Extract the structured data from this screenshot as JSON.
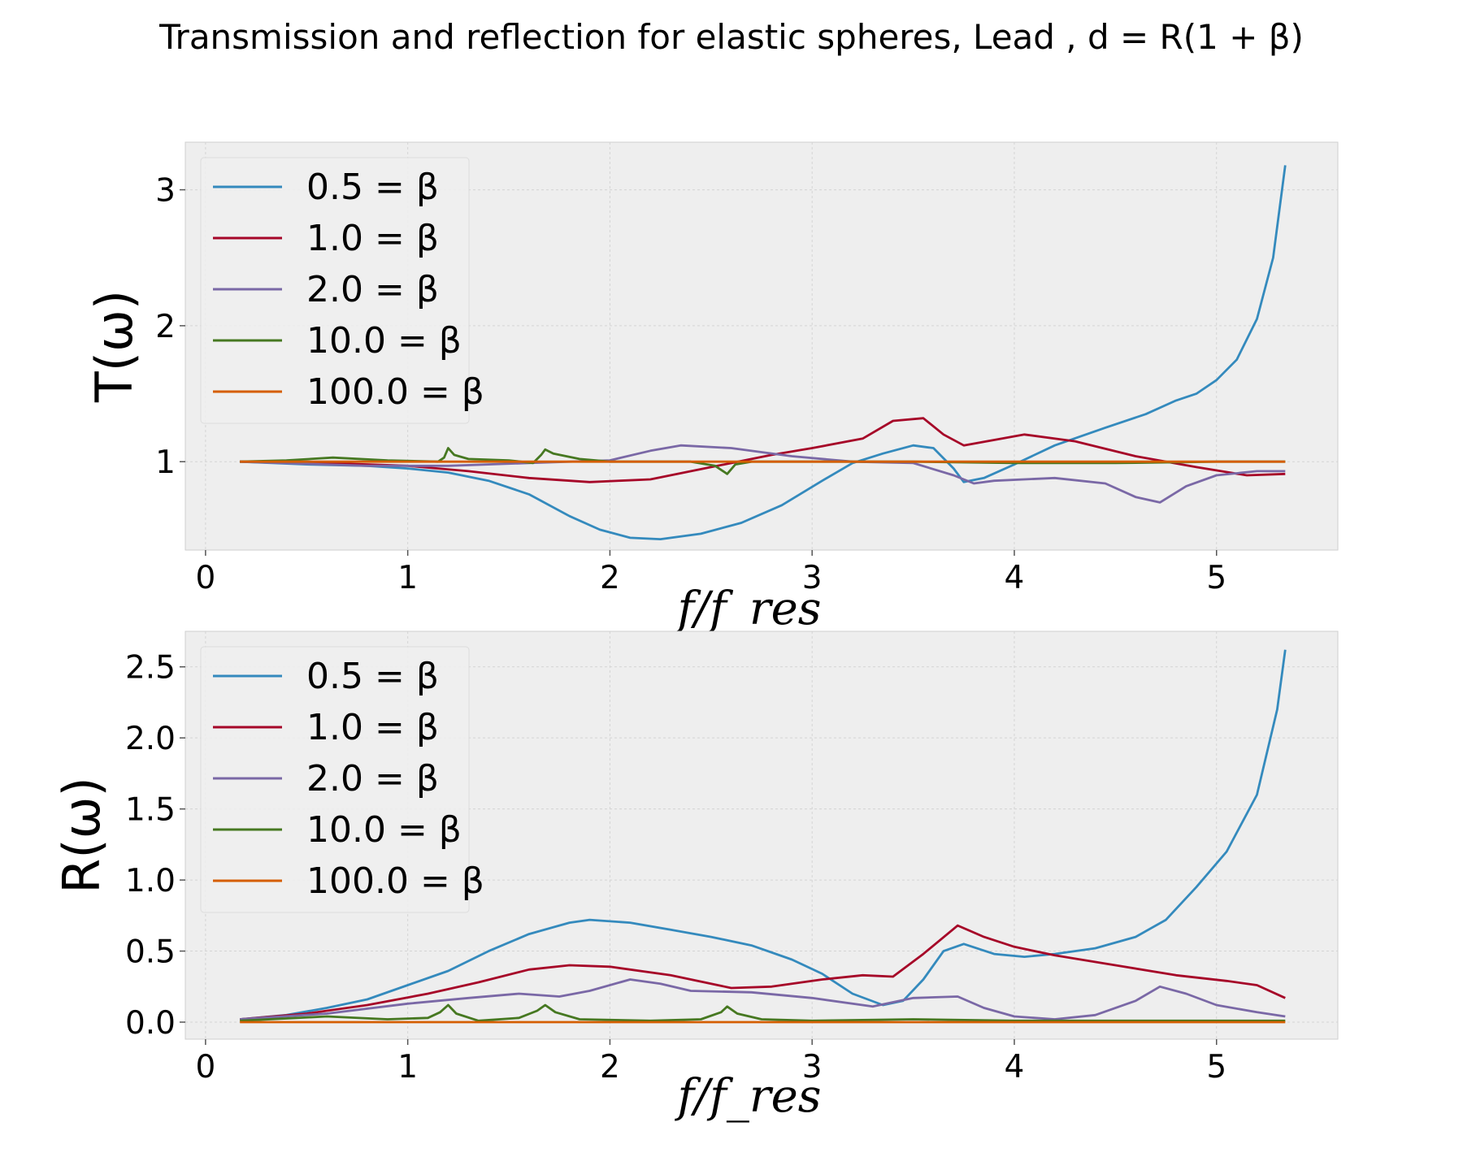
{
  "figure": {
    "title": "Transmission and reflection for elastic spheres, Lead , d = R(1 + β)"
  },
  "chart_data": [
    {
      "type": "line",
      "id": "transmission",
      "ylabel": "T(ω)",
      "xlabel": "f/f_res",
      "xlim": [
        -0.1,
        5.6
      ],
      "ylim": [
        0.35,
        3.35
      ],
      "xticks": [
        0,
        1,
        2,
        3,
        4,
        5
      ],
      "yticks": [
        1,
        2,
        3
      ],
      "ytick_labels": [
        "1",
        "2",
        "3"
      ],
      "grid": true,
      "legend_position": "upper-left",
      "series": [
        {
          "name": "0.5 = β",
          "color": "#348ABD",
          "points": [
            [
              0.17,
              1.0
            ],
            [
              0.5,
              0.98
            ],
            [
              0.8,
              0.97
            ],
            [
              1.0,
              0.95
            ],
            [
              1.2,
              0.92
            ],
            [
              1.4,
              0.86
            ],
            [
              1.6,
              0.76
            ],
            [
              1.8,
              0.6
            ],
            [
              1.95,
              0.5
            ],
            [
              2.1,
              0.44
            ],
            [
              2.25,
              0.43
            ],
            [
              2.45,
              0.47
            ],
            [
              2.65,
              0.55
            ],
            [
              2.85,
              0.68
            ],
            [
              3.05,
              0.86
            ],
            [
              3.2,
              0.99
            ],
            [
              3.35,
              1.06
            ],
            [
              3.5,
              1.12
            ],
            [
              3.6,
              1.1
            ],
            [
              3.7,
              0.95
            ],
            [
              3.75,
              0.85
            ],
            [
              3.85,
              0.88
            ],
            [
              4.0,
              0.98
            ],
            [
              4.2,
              1.12
            ],
            [
              4.45,
              1.25
            ],
            [
              4.65,
              1.35
            ],
            [
              4.8,
              1.45
            ],
            [
              4.9,
              1.5
            ],
            [
              5.0,
              1.6
            ],
            [
              5.1,
              1.75
            ],
            [
              5.2,
              2.05
            ],
            [
              5.28,
              2.5
            ],
            [
              5.34,
              3.18
            ]
          ]
        },
        {
          "name": "1.0 = β",
          "color": "#A60628",
          "points": [
            [
              0.17,
              1.0
            ],
            [
              0.6,
              0.99
            ],
            [
              1.0,
              0.97
            ],
            [
              1.3,
              0.93
            ],
            [
              1.6,
              0.88
            ],
            [
              1.9,
              0.85
            ],
            [
              2.2,
              0.87
            ],
            [
              2.5,
              0.96
            ],
            [
              2.8,
              1.05
            ],
            [
              3.0,
              1.1
            ],
            [
              3.25,
              1.17
            ],
            [
              3.4,
              1.3
            ],
            [
              3.55,
              1.32
            ],
            [
              3.65,
              1.2
            ],
            [
              3.75,
              1.12
            ],
            [
              3.9,
              1.16
            ],
            [
              4.05,
              1.2
            ],
            [
              4.3,
              1.15
            ],
            [
              4.6,
              1.04
            ],
            [
              4.9,
              0.96
            ],
            [
              5.15,
              0.9
            ],
            [
              5.34,
              0.91
            ]
          ]
        },
        {
          "name": "2.0 = β",
          "color": "#7A68A6",
          "points": [
            [
              0.17,
              1.0
            ],
            [
              0.8,
              0.97
            ],
            [
              1.2,
              0.97
            ],
            [
              1.6,
              0.99
            ],
            [
              2.0,
              1.01
            ],
            [
              2.2,
              1.08
            ],
            [
              2.35,
              1.12
            ],
            [
              2.6,
              1.1
            ],
            [
              2.9,
              1.04
            ],
            [
              3.2,
              1.0
            ],
            [
              3.5,
              0.99
            ],
            [
              3.7,
              0.9
            ],
            [
              3.8,
              0.84
            ],
            [
              3.9,
              0.86
            ],
            [
              4.2,
              0.88
            ],
            [
              4.45,
              0.84
            ],
            [
              4.6,
              0.74
            ],
            [
              4.72,
              0.7
            ],
            [
              4.85,
              0.82
            ],
            [
              5.0,
              0.9
            ],
            [
              5.2,
              0.93
            ],
            [
              5.34,
              0.93
            ]
          ]
        },
        {
          "name": "10.0 = β",
          "color": "#467821",
          "points": [
            [
              0.17,
              1.0
            ],
            [
              0.4,
              1.01
            ],
            [
              0.63,
              1.03
            ],
            [
              0.9,
              1.01
            ],
            [
              1.15,
              1.0
            ],
            [
              1.18,
              1.03
            ],
            [
              1.2,
              1.1
            ],
            [
              1.23,
              1.05
            ],
            [
              1.3,
              1.02
            ],
            [
              1.5,
              1.01
            ],
            [
              1.62,
              0.99
            ],
            [
              1.66,
              1.05
            ],
            [
              1.68,
              1.09
            ],
            [
              1.72,
              1.06
            ],
            [
              1.85,
              1.02
            ],
            [
              2.0,
              1.0
            ],
            [
              2.4,
              1.0
            ],
            [
              2.52,
              0.97
            ],
            [
              2.58,
              0.91
            ],
            [
              2.62,
              0.98
            ],
            [
              2.7,
              1.0
            ],
            [
              3.0,
              1.0
            ],
            [
              3.5,
              1.0
            ],
            [
              4.0,
              0.99
            ],
            [
              4.5,
              0.99
            ],
            [
              5.0,
              1.0
            ],
            [
              5.34,
              1.0
            ]
          ]
        },
        {
          "name": "100.0 = β",
          "color": "#D55E00",
          "points": [
            [
              0.17,
              1.0
            ],
            [
              1.0,
              1.0
            ],
            [
              2.0,
              1.0
            ],
            [
              3.0,
              1.0
            ],
            [
              4.0,
              1.0
            ],
            [
              5.0,
              1.0
            ],
            [
              5.34,
              1.0
            ]
          ]
        }
      ]
    },
    {
      "type": "line",
      "id": "reflection",
      "ylabel": "R(ω)",
      "xlabel": "f/f_res",
      "xlim": [
        -0.1,
        5.6
      ],
      "ylim": [
        -0.12,
        2.75
      ],
      "xticks": [
        0,
        1,
        2,
        3,
        4,
        5
      ],
      "yticks": [
        0.0,
        0.5,
        1.0,
        1.5,
        2.0,
        2.5
      ],
      "ytick_labels": [
        "0.0",
        "0.5",
        "1.0",
        "1.5",
        "2.0",
        "2.5"
      ],
      "grid": true,
      "legend_position": "upper-left",
      "series": [
        {
          "name": "0.5 = β",
          "color": "#348ABD",
          "points": [
            [
              0.17,
              0.02
            ],
            [
              0.4,
              0.05
            ],
            [
              0.6,
              0.1
            ],
            [
              0.8,
              0.16
            ],
            [
              1.0,
              0.26
            ],
            [
              1.2,
              0.36
            ],
            [
              1.4,
              0.5
            ],
            [
              1.6,
              0.62
            ],
            [
              1.8,
              0.7
            ],
            [
              1.9,
              0.72
            ],
            [
              2.1,
              0.7
            ],
            [
              2.3,
              0.65
            ],
            [
              2.5,
              0.6
            ],
            [
              2.7,
              0.54
            ],
            [
              2.9,
              0.44
            ],
            [
              3.05,
              0.34
            ],
            [
              3.2,
              0.2
            ],
            [
              3.35,
              0.12
            ],
            [
              3.45,
              0.15
            ],
            [
              3.55,
              0.3
            ],
            [
              3.65,
              0.5
            ],
            [
              3.75,
              0.55
            ],
            [
              3.9,
              0.48
            ],
            [
              4.05,
              0.46
            ],
            [
              4.2,
              0.48
            ],
            [
              4.4,
              0.52
            ],
            [
              4.6,
              0.6
            ],
            [
              4.75,
              0.72
            ],
            [
              4.9,
              0.95
            ],
            [
              5.05,
              1.2
            ],
            [
              5.2,
              1.6
            ],
            [
              5.3,
              2.2
            ],
            [
              5.34,
              2.62
            ]
          ]
        },
        {
          "name": "1.0 = β",
          "color": "#A60628",
          "points": [
            [
              0.17,
              0.02
            ],
            [
              0.5,
              0.06
            ],
            [
              0.8,
              0.12
            ],
            [
              1.1,
              0.2
            ],
            [
              1.35,
              0.28
            ],
            [
              1.6,
              0.37
            ],
            [
              1.8,
              0.4
            ],
            [
              2.0,
              0.39
            ],
            [
              2.3,
              0.33
            ],
            [
              2.6,
              0.24
            ],
            [
              2.8,
              0.25
            ],
            [
              3.05,
              0.3
            ],
            [
              3.25,
              0.33
            ],
            [
              3.4,
              0.32
            ],
            [
              3.55,
              0.48
            ],
            [
              3.72,
              0.68
            ],
            [
              3.85,
              0.6
            ],
            [
              4.0,
              0.53
            ],
            [
              4.2,
              0.47
            ],
            [
              4.5,
              0.4
            ],
            [
              4.8,
              0.33
            ],
            [
              5.05,
              0.29
            ],
            [
              5.2,
              0.26
            ],
            [
              5.34,
              0.17
            ]
          ]
        },
        {
          "name": "2.0 = β",
          "color": "#7A68A6",
          "points": [
            [
              0.17,
              0.02
            ],
            [
              0.6,
              0.06
            ],
            [
              1.0,
              0.13
            ],
            [
              1.3,
              0.17
            ],
            [
              1.55,
              0.2
            ],
            [
              1.75,
              0.18
            ],
            [
              1.9,
              0.22
            ],
            [
              2.1,
              0.3
            ],
            [
              2.25,
              0.27
            ],
            [
              2.4,
              0.22
            ],
            [
              2.7,
              0.21
            ],
            [
              3.0,
              0.17
            ],
            [
              3.3,
              0.11
            ],
            [
              3.5,
              0.17
            ],
            [
              3.72,
              0.18
            ],
            [
              3.85,
              0.1
            ],
            [
              4.0,
              0.04
            ],
            [
              4.2,
              0.02
            ],
            [
              4.4,
              0.05
            ],
            [
              4.6,
              0.15
            ],
            [
              4.72,
              0.25
            ],
            [
              4.85,
              0.2
            ],
            [
              5.0,
              0.12
            ],
            [
              5.2,
              0.07
            ],
            [
              5.34,
              0.04
            ]
          ]
        },
        {
          "name": "10.0 = β",
          "color": "#467821",
          "points": [
            [
              0.17,
              0.01
            ],
            [
              0.6,
              0.04
            ],
            [
              0.9,
              0.02
            ],
            [
              1.1,
              0.03
            ],
            [
              1.16,
              0.07
            ],
            [
              1.2,
              0.12
            ],
            [
              1.24,
              0.06
            ],
            [
              1.35,
              0.01
            ],
            [
              1.55,
              0.03
            ],
            [
              1.64,
              0.08
            ],
            [
              1.68,
              0.12
            ],
            [
              1.73,
              0.07
            ],
            [
              1.85,
              0.02
            ],
            [
              2.2,
              0.01
            ],
            [
              2.45,
              0.02
            ],
            [
              2.55,
              0.07
            ],
            [
              2.58,
              0.11
            ],
            [
              2.63,
              0.06
            ],
            [
              2.75,
              0.02
            ],
            [
              3.0,
              0.01
            ],
            [
              3.5,
              0.02
            ],
            [
              4.0,
              0.01
            ],
            [
              5.0,
              0.01
            ],
            [
              5.34,
              0.01
            ]
          ]
        },
        {
          "name": "100.0 = β",
          "color": "#D55E00",
          "points": [
            [
              0.17,
              0.0
            ],
            [
              1.0,
              0.0
            ],
            [
              2.0,
              0.0
            ],
            [
              3.0,
              0.0
            ],
            [
              4.0,
              0.0
            ],
            [
              5.0,
              0.0
            ],
            [
              5.34,
              0.0
            ]
          ]
        }
      ]
    }
  ]
}
